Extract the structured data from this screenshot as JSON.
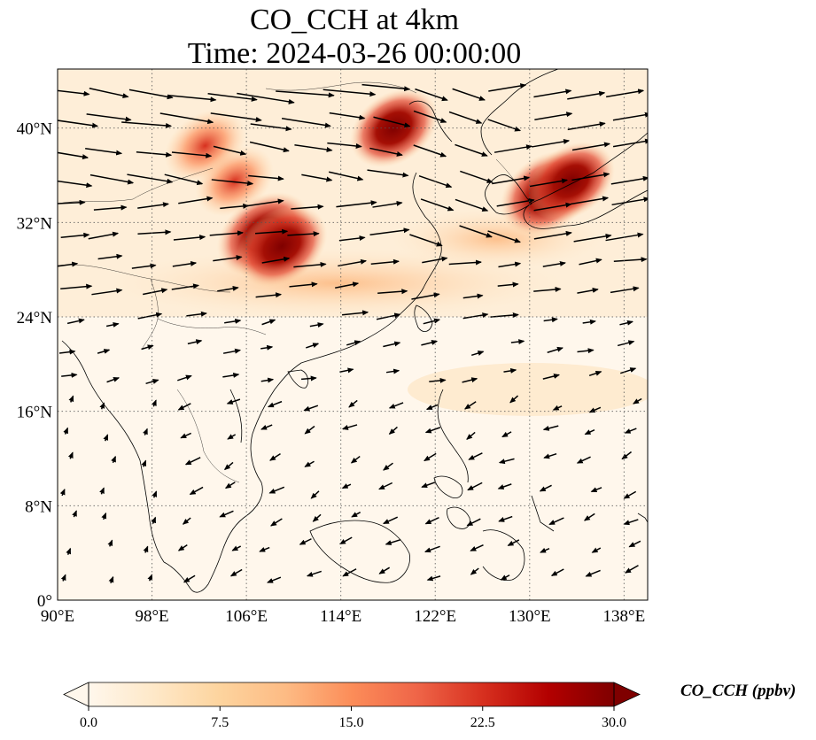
{
  "title_line1": "CO_CCH at 4km",
  "title_line2": "Time: 2024-03-26 00:00:00",
  "map": {
    "lon_range": [
      90,
      140
    ],
    "lat_range": [
      0,
      45
    ],
    "lon_ticks": [
      {
        "value": 90,
        "label": "90°E"
      },
      {
        "value": 98,
        "label": "98°E"
      },
      {
        "value": 106,
        "label": "106°E"
      },
      {
        "value": 114,
        "label": "114°E"
      },
      {
        "value": 122,
        "label": "122°E"
      },
      {
        "value": 130,
        "label": "130°E"
      },
      {
        "value": 138,
        "label": "138°E"
      }
    ],
    "lat_ticks": [
      {
        "value": 0,
        "label": "0°"
      },
      {
        "value": 8,
        "label": "8°N"
      },
      {
        "value": 16,
        "label": "16°N"
      },
      {
        "value": 24,
        "label": "24°N"
      },
      {
        "value": 32,
        "label": "32°N"
      },
      {
        "value": 40,
        "label": "40°N"
      }
    ],
    "gridlines": true,
    "concentration_hotspots": [
      {
        "lon": 107.5,
        "lat": 31.0,
        "value": 30
      },
      {
        "lon": 109.0,
        "lat": 30.0,
        "value": 28
      },
      {
        "lon": 131.5,
        "lat": 34.5,
        "value": 30
      },
      {
        "lon": 133.5,
        "lat": 35.5,
        "value": 26
      },
      {
        "lon": 118.5,
        "lat": 40.0,
        "value": 26
      },
      {
        "lon": 102.5,
        "lat": 38.5,
        "value": 22
      },
      {
        "lon": 105.0,
        "lat": 35.5,
        "value": 20
      }
    ],
    "wind": "northwesterly to westerly flow north of 24°N, weak northeasterly flow south of 20°N"
  },
  "colorbar": {
    "colormap": "OrRd",
    "min": 0.0,
    "max": 30.0,
    "ticks": [
      "0.0",
      "7.5",
      "15.0",
      "22.5",
      "30.0"
    ],
    "extend": "both",
    "label": "CO_CCH (ppbv)"
  }
}
